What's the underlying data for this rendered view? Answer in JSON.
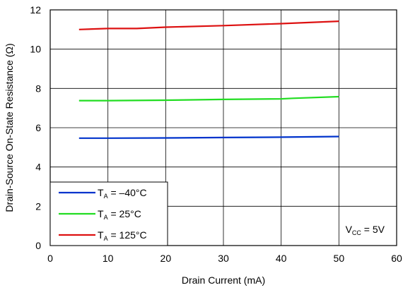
{
  "chart_data": {
    "type": "line",
    "title": "",
    "xlabel": "Drain Current (mA)",
    "ylabel": "Drain-Source On-State Resistance (Ω)",
    "xlim": [
      0,
      60
    ],
    "ylim": [
      0,
      12
    ],
    "xticks": [
      0,
      10,
      20,
      30,
      40,
      50,
      60
    ],
    "yticks": [
      0,
      2,
      4,
      6,
      8,
      10,
      12
    ],
    "grid": true,
    "legend_placement": "bottom-left",
    "annotation": {
      "main": "V",
      "sub": "CC",
      "rest": " = 5V"
    },
    "series": [
      {
        "name_main": "T",
        "name_sub": "A",
        "name_rest": " = –40°C",
        "color": "#0033cc",
        "x": [
          5,
          10,
          20,
          30,
          40,
          50
        ],
        "y": [
          5.47,
          5.47,
          5.48,
          5.5,
          5.52,
          5.55
        ]
      },
      {
        "name_main": "T",
        "name_sub": "A",
        "name_rest": " = 25°C",
        "color": "#22dd22",
        "x": [
          5,
          10,
          20,
          30,
          40,
          42,
          50
        ],
        "y": [
          7.38,
          7.38,
          7.4,
          7.44,
          7.47,
          7.5,
          7.58
        ]
      },
      {
        "name_main": "T",
        "name_sub": "A",
        "name_rest": " = 125°C",
        "color": "#dd1111",
        "x": [
          5,
          10,
          15,
          20,
          30,
          40,
          50
        ],
        "y": [
          11.0,
          11.05,
          11.05,
          11.12,
          11.2,
          11.3,
          11.42
        ]
      }
    ]
  }
}
